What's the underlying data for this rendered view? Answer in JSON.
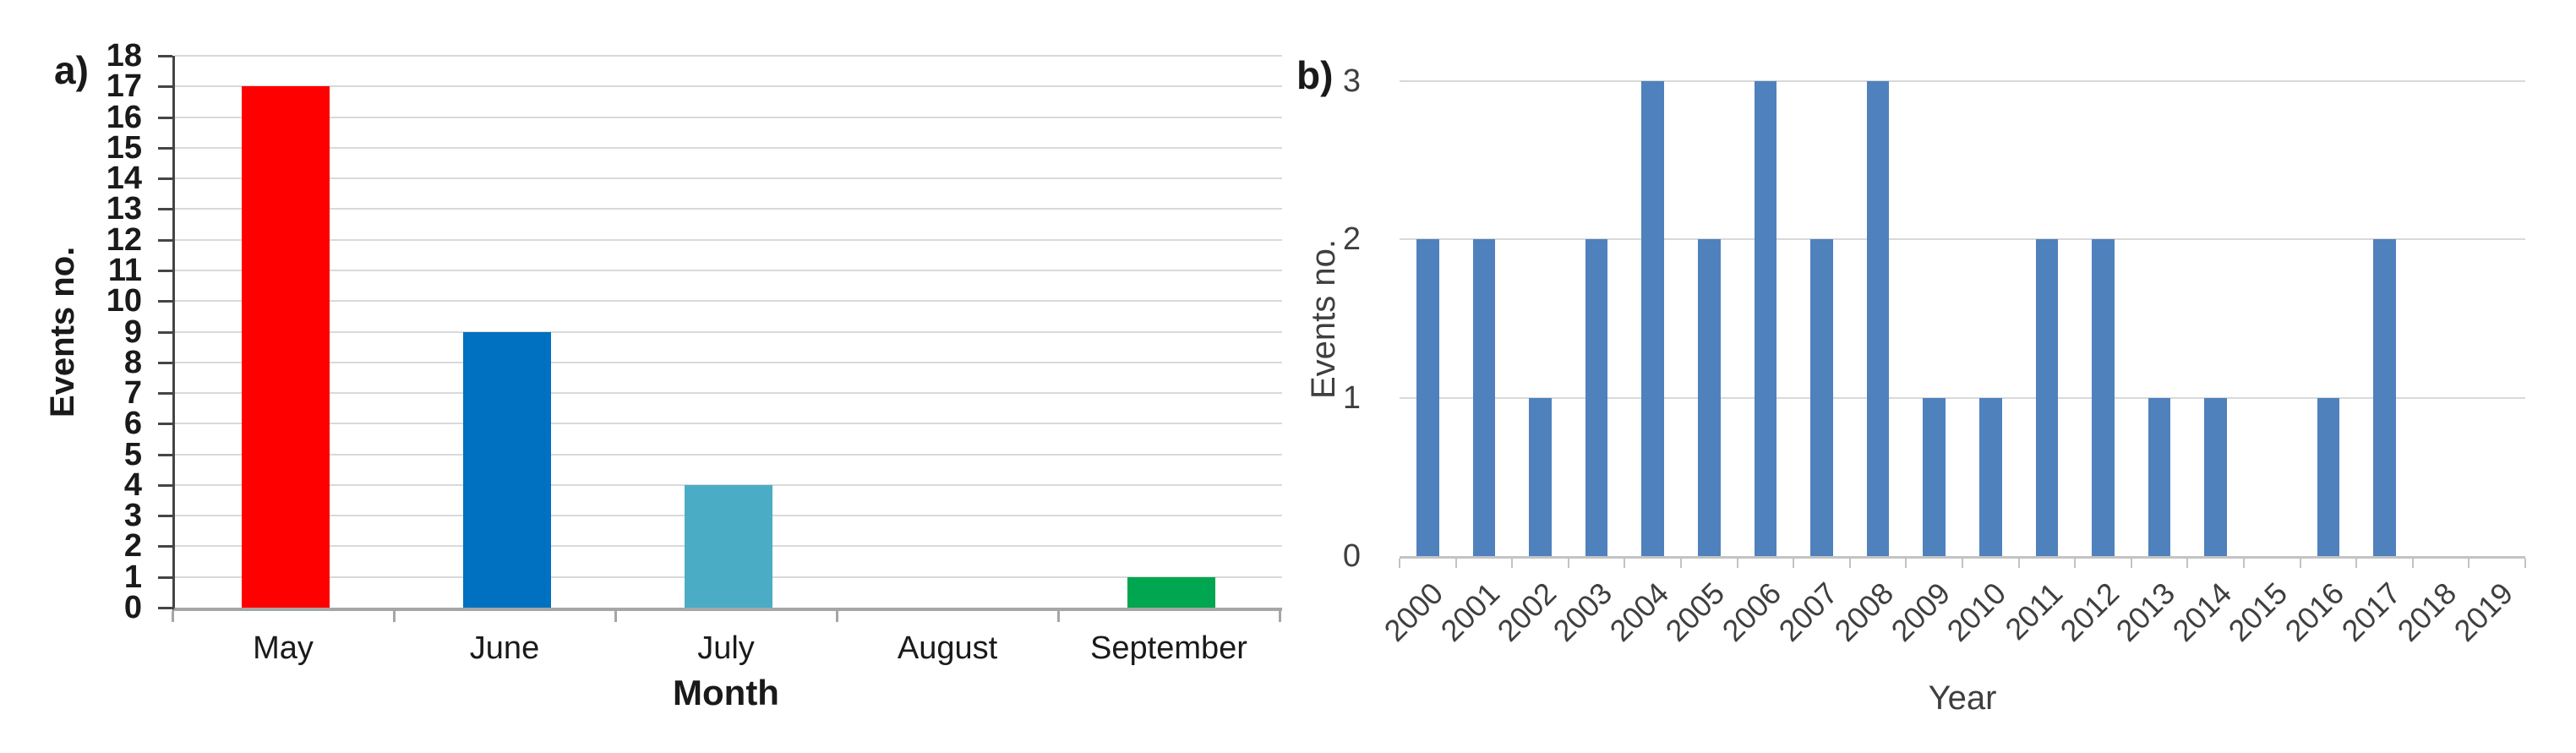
{
  "figure": {
    "background_color": "#ffffff",
    "text_color_panel_a": "#1a1a1a",
    "text_color_panel_b": "#3f3f3f",
    "gridline_color": "#d9d9d9"
  },
  "chart_data": [
    {
      "panel_label": "a)",
      "type": "bar",
      "categories": [
        "May",
        "June",
        "July",
        "August",
        "September"
      ],
      "values": [
        17,
        9,
        4,
        0,
        1
      ],
      "bar_colors": [
        "#fe0000",
        "#0070c0",
        "#4bacc6",
        null,
        "#00a650"
      ],
      "xlabel": "Month",
      "ylabel": "Events no.",
      "ylim": [
        0,
        18
      ],
      "yticks": [
        0,
        1,
        2,
        3,
        4,
        5,
        6,
        7,
        8,
        9,
        10,
        11,
        12,
        13,
        14,
        15,
        16,
        17,
        18
      ],
      "grid": true,
      "legend": "none",
      "y_axis_color": "#454545",
      "x_axis_color": "#a6a6a6"
    },
    {
      "panel_label": "b)",
      "type": "bar",
      "categories": [
        "2000",
        "2001",
        "2002",
        "2003",
        "2004",
        "2005",
        "2006",
        "2007",
        "2008",
        "2009",
        "2010",
        "2011",
        "2012",
        "2013",
        "2014",
        "2015",
        "2016",
        "2017",
        "2018",
        "2019"
      ],
      "values": [
        2,
        2,
        1,
        2,
        3,
        2,
        3,
        2,
        3,
        1,
        1,
        2,
        2,
        1,
        1,
        0,
        1,
        2,
        0,
        0
      ],
      "bar_color": "#4f81bd",
      "xlabel": "Year",
      "ylabel": "Events no.",
      "ylim": [
        0,
        3
      ],
      "yticks": [
        0,
        1,
        2,
        3
      ],
      "x_tick_rotation": -45,
      "grid": true,
      "legend": "none",
      "x_axis_color": "#c3c3c3"
    }
  ]
}
